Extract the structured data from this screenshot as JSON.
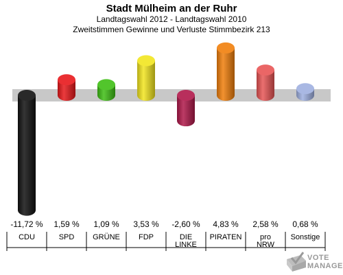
{
  "chart_data": {
    "type": "bar",
    "title": "Stadt Mülheim an der Ruhr",
    "subtitle1": "Landtagswahl 2012 - Landtagswahl 2010",
    "subtitle2": "Zweitstimmen Gewinne und Verluste Stimmbezirk 213",
    "ylim": [
      -11.72,
      4.83
    ],
    "grid": false,
    "bars": [
      {
        "category": "CDU",
        "value": -11.72,
        "label": "-11,72 %",
        "color": "#111111"
      },
      {
        "category": "SPD",
        "value": 1.59,
        "label": "1,59 %",
        "color": "#e8181b"
      },
      {
        "category": "GRÜNE",
        "value": 1.09,
        "label": "1,09 %",
        "color": "#3fbf15"
      },
      {
        "category": "FDP",
        "value": 3.53,
        "label": "3,53 %",
        "color": "#f2e51f"
      },
      {
        "category": "DIE LINKE",
        "value": -2.6,
        "label": "-2,60 %",
        "color": "#b0184a"
      },
      {
        "category": "PIRATEN",
        "value": 4.83,
        "label": "4,83 %",
        "color": "#f07f0c"
      },
      {
        "category": "pro NRW",
        "value": 2.58,
        "label": "2,58 %",
        "color": "#e85555"
      },
      {
        "category": "Sonstige",
        "value": 0.68,
        "label": "0,68 %",
        "color": "#9fb0e0"
      }
    ]
  },
  "logo": {
    "line1": "VOTE",
    "line2": "MANAGER"
  }
}
